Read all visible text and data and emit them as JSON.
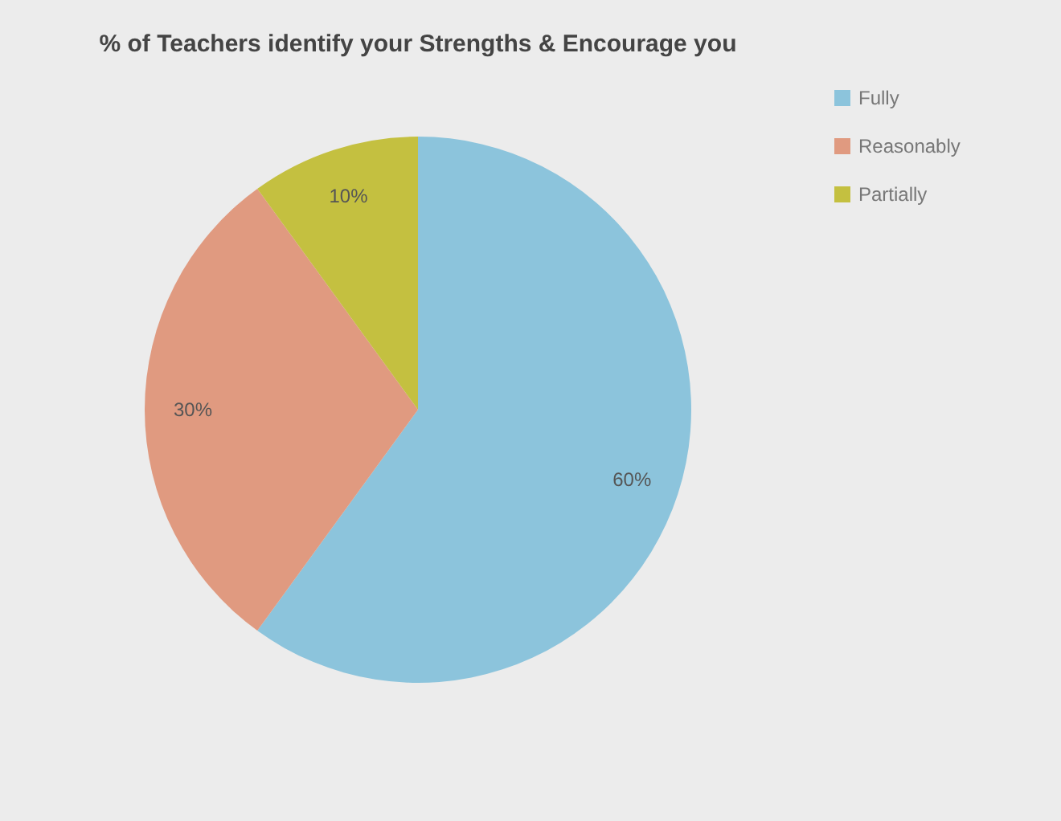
{
  "chart_data": {
    "type": "pie",
    "title": "% of Teachers identify your Strengths & Encourage you",
    "categories": [
      "Fully",
      "Reasonably",
      "Partially"
    ],
    "values": [
      60,
      30,
      10
    ],
    "value_labels": [
      "60%",
      "30%",
      "10%"
    ],
    "colors": [
      "#8cc4dc",
      "#e09a80",
      "#c4c040"
    ],
    "legend": "right"
  }
}
